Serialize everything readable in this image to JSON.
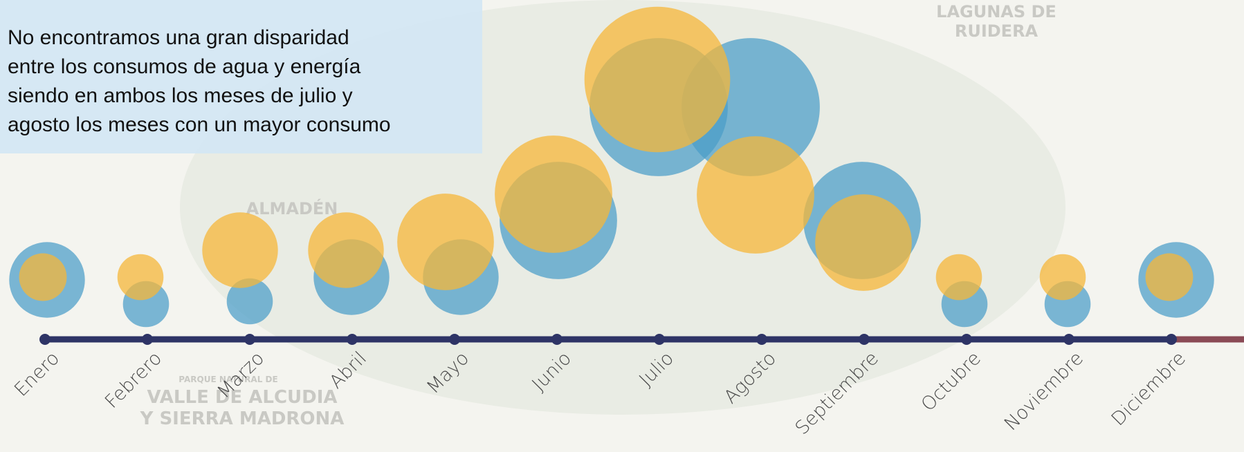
{
  "chart_data": {
    "type": "bubble",
    "annotation": [
      "No encontramos una  gran disparidad",
      "entre los consumos de agua y energía",
      "siendo en ambos  los meses de julio y",
      "agosto los meses con un mayor consumo"
    ],
    "categories": [
      "Enero",
      "Febrero",
      "Marzo",
      "Abril",
      "Mayo",
      "Junio",
      "Julio",
      "Agosto",
      "Septiembre",
      "Octubre",
      "Noviembre",
      "Diciembre"
    ],
    "series": [
      {
        "color": "#4a9cc8",
        "values": [
          2.7,
          1,
          1,
          2.7,
          2.7,
          6.5,
          9,
          9,
          6.5,
          1,
          1,
          2.7
        ]
      },
      {
        "color": "#f5b73a",
        "values": [
          1.07,
          1,
          2.7,
          2.7,
          4.4,
          6.5,
          10,
          6.5,
          4.4,
          1,
          1,
          1.07
        ]
      }
    ],
    "map_labels": [
      "LAGUNAS DE",
      "RUIDERA",
      "ALMADÉN",
      "PARQUE NATURAL DE",
      "VALLE DE ALCUDIA",
      "Y SIERRA MADRONA"
    ]
  }
}
